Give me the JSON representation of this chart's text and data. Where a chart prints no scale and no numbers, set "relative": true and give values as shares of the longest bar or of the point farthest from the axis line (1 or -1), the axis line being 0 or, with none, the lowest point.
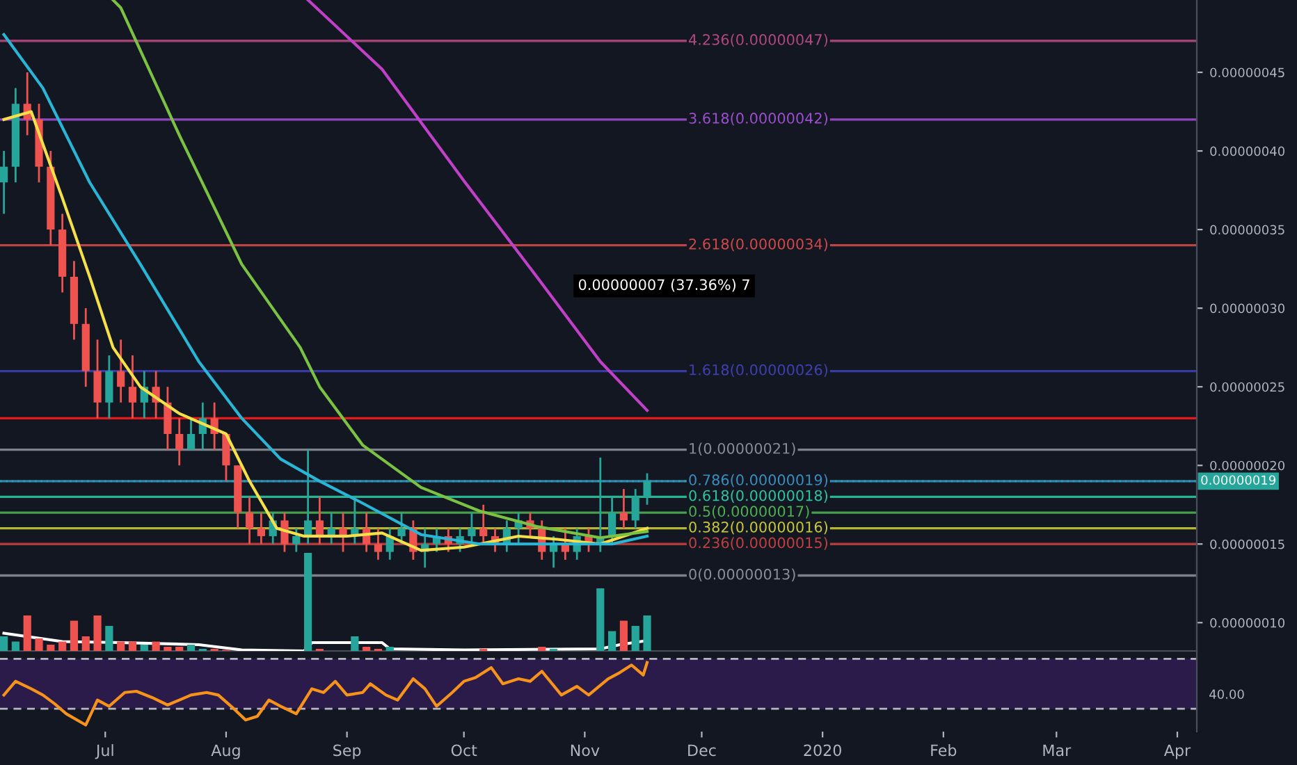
{
  "chart_data": [
    {
      "type": "candlestick",
      "x": [
        "2019-06-05",
        "2019-06-08",
        "2019-06-11",
        "2019-06-14",
        "2019-06-17",
        "2019-06-20",
        "2019-06-23",
        "2019-06-26",
        "2019-06-29",
        "2019-07-02",
        "2019-07-05",
        "2019-07-08",
        "2019-07-11",
        "2019-07-14",
        "2019-07-17",
        "2019-07-20",
        "2019-07-23",
        "2019-07-26",
        "2019-07-29",
        "2019-08-01",
        "2019-08-04",
        "2019-08-07",
        "2019-08-10",
        "2019-08-13",
        "2019-08-16",
        "2019-08-19",
        "2019-08-22",
        "2019-08-25",
        "2019-08-28",
        "2019-08-31",
        "2019-09-03",
        "2019-09-06",
        "2019-09-09",
        "2019-09-12",
        "2019-09-15",
        "2019-09-18",
        "2019-09-21",
        "2019-09-24",
        "2019-09-27",
        "2019-09-30",
        "2019-10-03",
        "2019-10-06",
        "2019-10-09",
        "2019-10-12",
        "2019-10-15",
        "2019-10-18",
        "2019-10-21",
        "2019-10-24",
        "2019-10-27",
        "2019-10-30",
        "2019-11-02",
        "2019-11-05",
        "2019-11-08",
        "2019-11-11",
        "2019-11-14",
        "2019-11-17"
      ],
      "ohlc": [
        [
          3.8e-07,
          4e-07,
          3.6e-07,
          3.9e-07
        ],
        [
          3.9e-07,
          4.4e-07,
          3.8e-07,
          4.3e-07
        ],
        [
          4.3e-07,
          4.5e-07,
          4.1e-07,
          4.2e-07
        ],
        [
          4.2e-07,
          4.3e-07,
          3.8e-07,
          3.9e-07
        ],
        [
          3.9e-07,
          4e-07,
          3.4e-07,
          3.5e-07
        ],
        [
          3.5e-07,
          3.6e-07,
          3.1e-07,
          3.2e-07
        ],
        [
          3.2e-07,
          3.3e-07,
          2.8e-07,
          2.9e-07
        ],
        [
          2.9e-07,
          3e-07,
          2.5e-07,
          2.6e-07
        ],
        [
          2.6e-07,
          2.8e-07,
          2.3e-07,
          2.4e-07
        ],
        [
          2.4e-07,
          2.7e-07,
          2.3e-07,
          2.6e-07
        ],
        [
          2.6e-07,
          2.8e-07,
          2.4e-07,
          2.5e-07
        ],
        [
          2.5e-07,
          2.7e-07,
          2.3e-07,
          2.4e-07
        ],
        [
          2.4e-07,
          2.6e-07,
          2.3e-07,
          2.5e-07
        ],
        [
          2.5e-07,
          2.6e-07,
          2.3e-07,
          2.4e-07
        ],
        [
          2.4e-07,
          2.5e-07,
          2.1e-07,
          2.2e-07
        ],
        [
          2.2e-07,
          2.3e-07,
          2e-07,
          2.1e-07
        ],
        [
          2.1e-07,
          2.3e-07,
          2.1e-07,
          2.2e-07
        ],
        [
          2.2e-07,
          2.4e-07,
          2.1e-07,
          2.3e-07
        ],
        [
          2.3e-07,
          2.4e-07,
          2.1e-07,
          2.2e-07
        ],
        [
          2.2e-07,
          2.2e-07,
          1.9e-07,
          2e-07
        ],
        [
          2e-07,
          2e-07,
          1.6e-07,
          1.7e-07
        ],
        [
          1.7e-07,
          1.8e-07,
          1.5e-07,
          1.6e-07
        ],
        [
          1.6e-07,
          1.7e-07,
          1.5e-07,
          1.55e-07
        ],
        [
          1.55e-07,
          1.7e-07,
          1.5e-07,
          1.65e-07
        ],
        [
          1.65e-07,
          1.7e-07,
          1.45e-07,
          1.5e-07
        ],
        [
          1.5e-07,
          1.6e-07,
          1.45e-07,
          1.55e-07
        ],
        [
          1.55e-07,
          2.1e-07,
          1.5e-07,
          1.65e-07
        ],
        [
          1.65e-07,
          1.8e-07,
          1.5e-07,
          1.55e-07
        ],
        [
          1.55e-07,
          1.7e-07,
          1.5e-07,
          1.6e-07
        ],
        [
          1.6e-07,
          1.7e-07,
          1.45e-07,
          1.55e-07
        ],
        [
          1.55e-07,
          1.8e-07,
          1.5e-07,
          1.6e-07
        ],
        [
          1.6e-07,
          1.7e-07,
          1.45e-07,
          1.5e-07
        ],
        [
          1.5e-07,
          1.6e-07,
          1.4e-07,
          1.45e-07
        ],
        [
          1.45e-07,
          1.6e-07,
          1.4e-07,
          1.55e-07
        ],
        [
          1.55e-07,
          1.7e-07,
          1.5e-07,
          1.6e-07
        ],
        [
          1.6e-07,
          1.65e-07,
          1.4e-07,
          1.45e-07
        ],
        [
          1.45e-07,
          1.6e-07,
          1.35e-07,
          1.5e-07
        ],
        [
          1.5e-07,
          1.6e-07,
          1.45e-07,
          1.55e-07
        ],
        [
          1.55e-07,
          1.6e-07,
          1.45e-07,
          1.5e-07
        ],
        [
          1.5e-07,
          1.6e-07,
          1.45e-07,
          1.55e-07
        ],
        [
          1.55e-07,
          1.7e-07,
          1.5e-07,
          1.6e-07
        ],
        [
          1.6e-07,
          1.75e-07,
          1.5e-07,
          1.55e-07
        ],
        [
          1.55e-07,
          1.6e-07,
          1.45e-07,
          1.5e-07
        ],
        [
          1.5e-07,
          1.65e-07,
          1.45e-07,
          1.6e-07
        ],
        [
          1.6e-07,
          1.7e-07,
          1.5e-07,
          1.65e-07
        ],
        [
          1.65e-07,
          1.7e-07,
          1.55e-07,
          1.6e-07
        ],
        [
          1.6e-07,
          1.65e-07,
          1.4e-07,
          1.45e-07
        ],
        [
          1.45e-07,
          1.55e-07,
          1.35e-07,
          1.5e-07
        ],
        [
          1.5e-07,
          1.6e-07,
          1.4e-07,
          1.45e-07
        ],
        [
          1.45e-07,
          1.6e-07,
          1.4e-07,
          1.55e-07
        ],
        [
          1.55e-07,
          1.6e-07,
          1.45e-07,
          1.5e-07
        ],
        [
          1.5e-07,
          2.05e-07,
          1.45e-07,
          1.55e-07
        ],
        [
          1.55e-07,
          1.8e-07,
          1.5e-07,
          1.7e-07
        ],
        [
          1.7e-07,
          1.85e-07,
          1.6e-07,
          1.65e-07
        ],
        [
          1.65e-07,
          1.85e-07,
          1.6e-07,
          1.8e-07
        ],
        [
          1.8e-07,
          1.95e-07,
          1.75e-07,
          1.9e-07
        ]
      ],
      "colors": [
        "#26a69a",
        "#26a69a",
        "#ef5350",
        "#ef5350",
        "#ef5350",
        "#ef5350",
        "#ef5350",
        "#ef5350",
        "#ef5350",
        "#26a69a",
        "#ef5350",
        "#ef5350",
        "#26a69a",
        "#ef5350",
        "#ef5350",
        "#ef5350",
        "#26a69a",
        "#26a69a",
        "#ef5350",
        "#ef5350",
        "#ef5350",
        "#ef5350",
        "#ef5350",
        "#26a69a",
        "#ef5350",
        "#26a69a",
        "#26a69a",
        "#ef5350",
        "#26a69a",
        "#ef5350",
        "#26a69a",
        "#ef5350",
        "#ef5350",
        "#26a69a",
        "#26a69a",
        "#ef5350",
        "#26a69a",
        "#26a69a",
        "#ef5350",
        "#26a69a",
        "#26a69a",
        "#ef5350",
        "#ef5350",
        "#26a69a",
        "#26a69a",
        "#ef5350",
        "#ef5350",
        "#26a69a",
        "#ef5350",
        "#26a69a",
        "#ef5350",
        "#26a69a",
        "#26a69a",
        "#ef5350",
        "#26a69a",
        "#26a69a"
      ],
      "series": [
        {
          "type": "line",
          "color": "#f5e04a",
          "x": [
            "2019-06-05",
            "2019-06-12",
            "2019-06-20",
            "2019-06-27",
            "2019-07-03",
            "2019-07-10",
            "2019-07-20",
            "2019-08-01",
            "2019-08-07",
            "2019-08-14",
            "2019-08-21",
            "2019-09-01",
            "2019-09-10",
            "2019-09-20",
            "2019-10-01",
            "2019-10-15",
            "2019-10-25",
            "2019-11-05",
            "2019-11-17"
          ],
          "values": [
            4.2e-07,
            4.25e-07,
            3.7e-07,
            3.2e-07,
            2.75e-07,
            2.5e-07,
            2.33e-07,
            2.2e-07,
            1.9e-07,
            1.6e-07,
            1.55e-07,
            1.55e-07,
            1.57e-07,
            1.46e-07,
            1.48e-07,
            1.55e-07,
            1.53e-07,
            1.5e-07,
            1.6e-07
          ]
        },
        {
          "type": "line",
          "color": "#29b6d6",
          "x": [
            "2019-06-05",
            "2019-06-15",
            "2019-06-27",
            "2019-07-10",
            "2019-07-25",
            "2019-08-05",
            "2019-08-15",
            "2019-08-25",
            "2019-09-05",
            "2019-09-20",
            "2019-10-05",
            "2019-10-25",
            "2019-11-08",
            "2019-11-17"
          ],
          "values": [
            4.74e-07,
            4.4e-07,
            3.8e-07,
            3.28e-07,
            2.66e-07,
            2.3e-07,
            2.04e-07,
            1.9e-07,
            1.76e-07,
            1.56e-07,
            1.5e-07,
            1.5e-07,
            1.5e-07,
            1.55e-07
          ]
        },
        {
          "type": "line",
          "color": "#7cc242",
          "x": [
            "2019-07-03",
            "2019-07-05",
            "2019-07-20",
            "2019-08-05",
            "2019-08-20",
            "2019-08-25",
            "2019-09-05",
            "2019-09-20",
            "2019-10-05",
            "2019-10-20",
            "2019-11-05",
            "2019-11-17"
          ],
          "values": [
            4.96e-07,
            4.91e-07,
            4.1e-07,
            3.28e-07,
            2.75e-07,
            2.5e-07,
            2.13e-07,
            1.86e-07,
            1.71e-07,
            1.61e-07,
            1.54e-07,
            1.58e-07
          ]
        },
        {
          "type": "line",
          "color": "#c040c8",
          "x": [
            "2019-08-22",
            "2019-09-10",
            "2019-10-01",
            "2019-10-20",
            "2019-11-05",
            "2019-11-17"
          ],
          "values": [
            4.96e-07,
            4.52e-07,
            3.81e-07,
            3.19e-07,
            2.66e-07,
            2.35e-07
          ]
        }
      ],
      "ref_lines": [
        {
          "axis": "y",
          "value": 4.7e-07,
          "label": "4.236(0.00000047)",
          "color": "#b2487f"
        },
        {
          "axis": "y",
          "value": 4.2e-07,
          "label": "3.618(0.00000042)",
          "color": "#9c4fd0"
        },
        {
          "axis": "y",
          "value": 3.4e-07,
          "label": "2.618(0.00000034)",
          "color": "#d14848"
        },
        {
          "axis": "y",
          "value": 2.6e-07,
          "label": "1.618(0.00000026)",
          "color": "#3f3fb0"
        },
        {
          "axis": "y",
          "value": 2.1e-07,
          "label": "1(0.00000021)",
          "color": "#8a8d96"
        },
        {
          "axis": "y",
          "value": 1.9e-07,
          "label": "0.786(0.00000019)",
          "color": "#3a8fc0"
        },
        {
          "axis": "y",
          "value": 1.8e-07,
          "label": "0.618(0.00000018)",
          "color": "#2ec4a0"
        },
        {
          "axis": "y",
          "value": 1.7e-07,
          "label": "0.5(0.00000017)",
          "color": "#4caf50"
        },
        {
          "axis": "y",
          "value": 1.6e-07,
          "label": "0.382(0.00000016)",
          "color": "#c8c83a"
        },
        {
          "axis": "y",
          "value": 1.5e-07,
          "label": "0.236(0.00000015)",
          "color": "#c04040"
        },
        {
          "axis": "y",
          "value": 1.3e-07,
          "label": "0(0.00000013)",
          "color": "#8a8d96"
        },
        {
          "axis": "y",
          "value": 2.3e-07,
          "label": null,
          "color": "#ff1a1a"
        },
        {
          "axis": "y",
          "value": 1.9e-07,
          "label": "0.00000019",
          "color": "#26a69a",
          "line_style": "dotted"
        }
      ],
      "annotations": [
        "0.00000007 (37.36%) 7"
      ],
      "xlim": [
        "2019-06-04",
        "2020-04-06"
      ],
      "ylim": [
        8.2e-08,
        4.96e-07
      ],
      "yticks": [
        {
          "value": 1e-07,
          "label": "0.00000010"
        },
        {
          "value": 1.5e-07,
          "label": "0.00000015"
        },
        {
          "value": 2e-07,
          "label": "0.00000020"
        },
        {
          "value": 2.5e-07,
          "label": "0.00000025"
        },
        {
          "value": 3e-07,
          "label": "0.00000030"
        },
        {
          "value": 3.5e-07,
          "label": "0.00000035"
        },
        {
          "value": 4e-07,
          "label": "0.00000040"
        },
        {
          "value": 4.5e-07,
          "label": "0.00000045"
        }
      ],
      "tick_labels": "y"
    },
    {
      "type": "bar",
      "relative": true,
      "tick_labels": false,
      "xlim": [
        "2019-06-04",
        "2020-04-06"
      ],
      "series": [
        {
          "type": "bar",
          "x": [
            "2019-06-05",
            "2019-06-08",
            "2019-06-11",
            "2019-06-14",
            "2019-06-17",
            "2019-06-20",
            "2019-06-23",
            "2019-06-26",
            "2019-06-29",
            "2019-07-02",
            "2019-07-05",
            "2019-07-08",
            "2019-07-11",
            "2019-07-14",
            "2019-07-17",
            "2019-07-20",
            "2019-07-23",
            "2019-07-26",
            "2019-07-29",
            "2019-08-01",
            "2019-08-04",
            "2019-08-07",
            "2019-08-10",
            "2019-08-13",
            "2019-08-16",
            "2019-08-19",
            "2019-08-22",
            "2019-08-25",
            "2019-08-28",
            "2019-08-31",
            "2019-09-03",
            "2019-09-06",
            "2019-09-09",
            "2019-09-12",
            "2019-09-15",
            "2019-09-18",
            "2019-09-21",
            "2019-09-24",
            "2019-09-27",
            "2019-09-30",
            "2019-10-03",
            "2019-10-06",
            "2019-10-09",
            "2019-10-12",
            "2019-10-15",
            "2019-10-18",
            "2019-10-21",
            "2019-10-24",
            "2019-10-27",
            "2019-10-30",
            "2019-11-02",
            "2019-11-05",
            "2019-11-08",
            "2019-11-11",
            "2019-11-14",
            "2019-11-17"
          ],
          "values": [
            0.2,
            0.15,
            0.4,
            0.18,
            0.12,
            0.15,
            0.35,
            0.2,
            0.4,
            0.3,
            0.15,
            0.15,
            0.12,
            0.15,
            0.1,
            0.1,
            0.12,
            0.08,
            0.08,
            0.07,
            null,
            null,
            null,
            null,
            null,
            null,
            1.0,
            0.08,
            null,
            null,
            0.2,
            0.1,
            0.08,
            0.1,
            null,
            null,
            null,
            null,
            null,
            null,
            null,
            0.08,
            null,
            null,
            null,
            null,
            0.1,
            0.08,
            null,
            null,
            null,
            0.66,
            0.25,
            0.35,
            0.3,
            0.4
          ],
          "colors": [
            "#26a69a",
            "#26a69a",
            "#ef5350",
            "#ef5350",
            "#ef5350",
            "#ef5350",
            "#ef5350",
            "#ef5350",
            "#ef5350",
            "#26a69a",
            "#ef5350",
            "#ef5350",
            "#26a69a",
            "#ef5350",
            "#ef5350",
            "#ef5350",
            "#26a69a",
            "#26a69a",
            "#ef5350",
            "#ef5350",
            "#ef5350",
            "#ef5350",
            "#ef5350",
            "#26a69a",
            "#ef5350",
            "#26a69a",
            "#26a69a",
            "#ef5350",
            "#26a69a",
            "#ef5350",
            "#26a69a",
            "#ef5350",
            "#ef5350",
            "#26a69a",
            "#26a69a",
            "#ef5350",
            "#26a69a",
            "#26a69a",
            "#ef5350",
            "#26a69a",
            "#26a69a",
            "#ef5350",
            "#ef5350",
            "#26a69a",
            "#26a69a",
            "#ef5350",
            "#ef5350",
            "#26a69a",
            "#ef5350",
            "#26a69a",
            "#ef5350",
            "#26a69a",
            "#26a69a",
            "#ef5350",
            "#26a69a",
            "#26a69a"
          ]
        },
        {
          "type": "line",
          "color": "#ffffff",
          "x": [
            "2019-06-05",
            "2019-06-20",
            "2019-07-05",
            "2019-07-25",
            "2019-08-05",
            "2019-08-21",
            "2019-08-23",
            "2019-09-10",
            "2019-09-12",
            "2019-10-01",
            "2019-11-05",
            "2019-11-10",
            "2019-11-17"
          ],
          "values": [
            0.23,
            0.15,
            0.14,
            0.12,
            0.07,
            0.06,
            0.14,
            0.14,
            0.08,
            0.07,
            0.08,
            0.12,
            0.16
          ]
        }
      ]
    },
    {
      "type": "line",
      "relative": true,
      "series": [
        {
          "color": "#f7931a",
          "x": [
            "2019-06-05",
            "2019-06-08",
            "2019-06-12",
            "2019-06-15",
            "2019-06-18",
            "2019-06-21",
            "2019-06-26",
            "2019-06-29",
            "2019-07-02",
            "2019-07-06",
            "2019-07-09",
            "2019-07-13",
            "2019-07-17",
            "2019-07-20",
            "2019-07-23",
            "2019-07-27",
            "2019-07-30",
            "2019-08-03",
            "2019-08-06",
            "2019-08-09",
            "2019-08-12",
            "2019-08-15",
            "2019-08-19",
            "2019-08-23",
            "2019-08-26",
            "2019-08-29",
            "2019-09-01",
            "2019-09-05",
            "2019-09-07",
            "2019-09-11",
            "2019-09-14",
            "2019-09-18",
            "2019-09-21",
            "2019-09-24",
            "2019-09-28",
            "2019-10-01",
            "2019-10-04",
            "2019-10-08",
            "2019-10-11",
            "2019-10-15",
            "2019-10-18",
            "2019-10-21",
            "2019-10-26",
            "2019-10-30",
            "2019-11-02",
            "2019-11-07",
            "2019-11-10",
            "2019-11-13",
            "2019-11-16",
            "2019-11-17"
          ],
          "values": [
            0.48,
            0.7,
            0.58,
            0.48,
            0.34,
            0.18,
            0,
            0.4,
            0.3,
            0.52,
            0.54,
            0.44,
            0.32,
            0.4,
            0.48,
            0.52,
            0.48,
            0.26,
            0.08,
            0.14,
            0.4,
            0.3,
            0.18,
            0.58,
            0.52,
            0.7,
            0.48,
            0.52,
            0.66,
            0.48,
            0.4,
            0.74,
            0.58,
            0.3,
            0.52,
            0.7,
            0.76,
            0.92,
            0.66,
            0.74,
            0.7,
            0.86,
            0.48,
            0.62,
            0.48,
            0.74,
            0.84,
            0.96,
            0.8,
            1
          ]
        }
      ],
      "ref_lines": [
        {
          "axis": "y",
          "value": 1.06,
          "label": null,
          "color": "#c8c8d0",
          "line_style": "dashed"
        },
        {
          "axis": "y",
          "value": 0.26,
          "label": null,
          "color": "#c8c8d0",
          "line_style": "dashed"
        }
      ],
      "bands": [
        {
          "axis": "y",
          "from": 0.26,
          "to": 1.06,
          "label": null,
          "color": "#2a1b4a"
        }
      ],
      "annotations": [
        "40.00"
      ],
      "xlim": [
        "2019-06-04",
        "2020-04-06"
      ],
      "xticks": [
        {
          "value": "2019-07-01",
          "label": "Jul"
        },
        {
          "value": "2019-08-01",
          "label": "Aug"
        },
        {
          "value": "2019-09-01",
          "label": "Sep"
        },
        {
          "value": "2019-10-01",
          "label": "Oct"
        },
        {
          "value": "2019-11-01",
          "label": "Nov"
        },
        {
          "value": "2019-12-01",
          "label": "Dec"
        },
        {
          "value": "2020-01-01",
          "label": "2020"
        },
        {
          "value": "2020-02-01",
          "label": "Feb"
        },
        {
          "value": "2020-03-01",
          "label": "Mar"
        },
        {
          "value": "2020-04-01",
          "label": "Apr"
        }
      ],
      "tick_labels": "x"
    }
  ]
}
